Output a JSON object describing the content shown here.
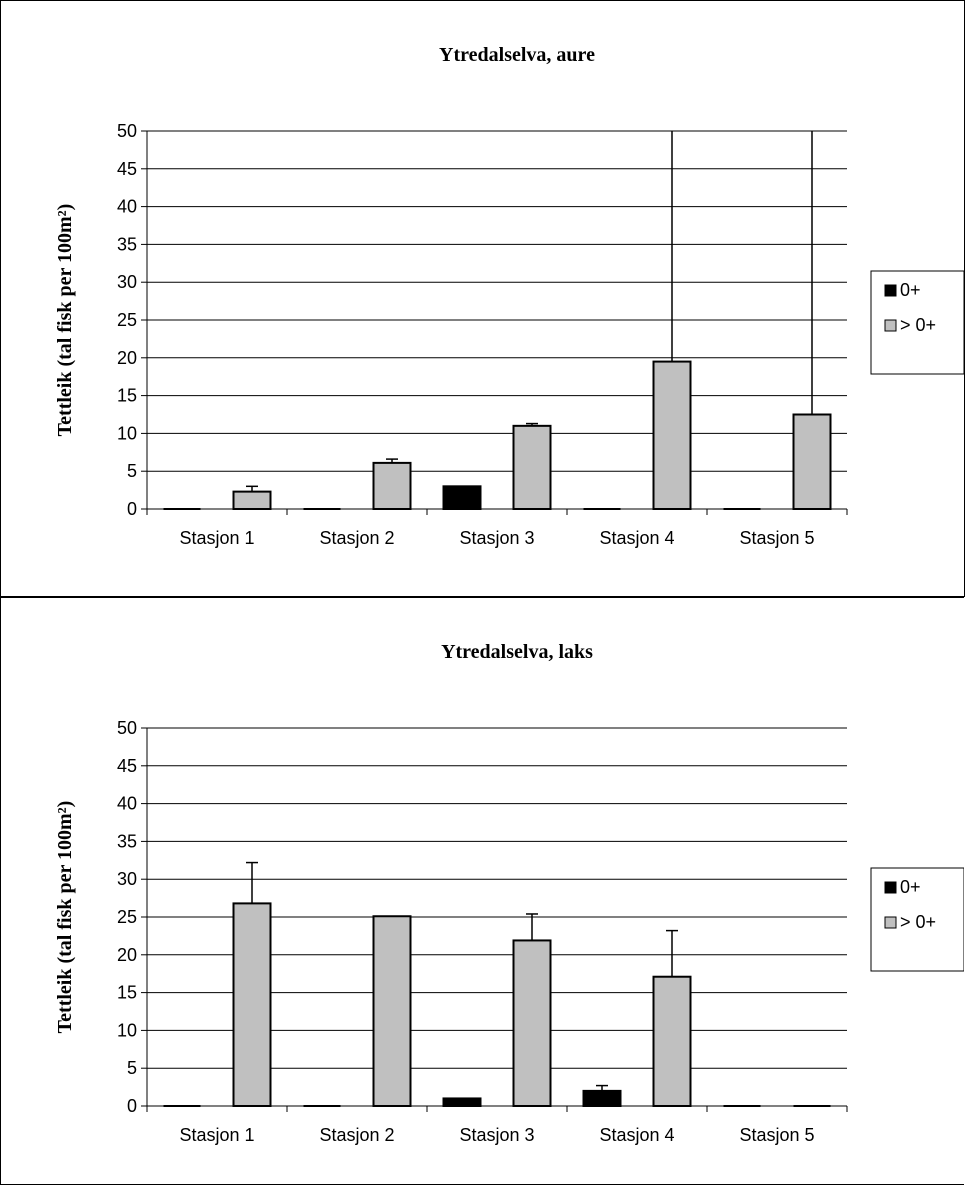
{
  "chart_data": [
    {
      "type": "bar",
      "title": "Ytredalselva, aure",
      "ylabel": "Tettleik (tal fisk per 100m²)",
      "xlabel": "",
      "ylim": [
        0,
        50
      ],
      "yticks": [
        0,
        5,
        10,
        15,
        20,
        25,
        30,
        35,
        40,
        45,
        50
      ],
      "grid": true,
      "legend_position": "right",
      "categories": [
        "Stasjon 1",
        "Stasjon 2",
        "Stasjon 3",
        "Stasjon 4",
        "Stasjon 5"
      ],
      "series": [
        {
          "name": "0+",
          "color": "#000000",
          "values": [
            0,
            0,
            3,
            0,
            0
          ],
          "error": [
            0,
            0,
            0,
            0,
            0
          ]
        },
        {
          "name": "> 0+",
          "color": "#c0c0c0",
          "values": [
            2.3,
            6.1,
            11.0,
            19.5,
            12.5
          ],
          "error": [
            0.7,
            0.5,
            0.3,
            50,
            50
          ]
        }
      ]
    },
    {
      "type": "bar",
      "title": "Ytredalselva, laks",
      "ylabel": "Tettleik (tal fisk per 100m²)",
      "xlabel": "",
      "ylim": [
        0,
        50
      ],
      "yticks": [
        0,
        5,
        10,
        15,
        20,
        25,
        30,
        35,
        40,
        45,
        50
      ],
      "grid": true,
      "legend_position": "right",
      "categories": [
        "Stasjon 1",
        "Stasjon 2",
        "Stasjon 3",
        "Stasjon 4",
        "Stasjon 5"
      ],
      "series": [
        {
          "name": "0+",
          "color": "#000000",
          "values": [
            0,
            0,
            1,
            2,
            0
          ],
          "error": [
            0,
            0,
            0,
            0.7,
            0
          ]
        },
        {
          "name": "> 0+",
          "color": "#c0c0c0",
          "values": [
            26.8,
            25.1,
            21.9,
            17.1,
            0
          ],
          "error": [
            5.4,
            0,
            3.5,
            6.1,
            0
          ]
        }
      ]
    }
  ]
}
